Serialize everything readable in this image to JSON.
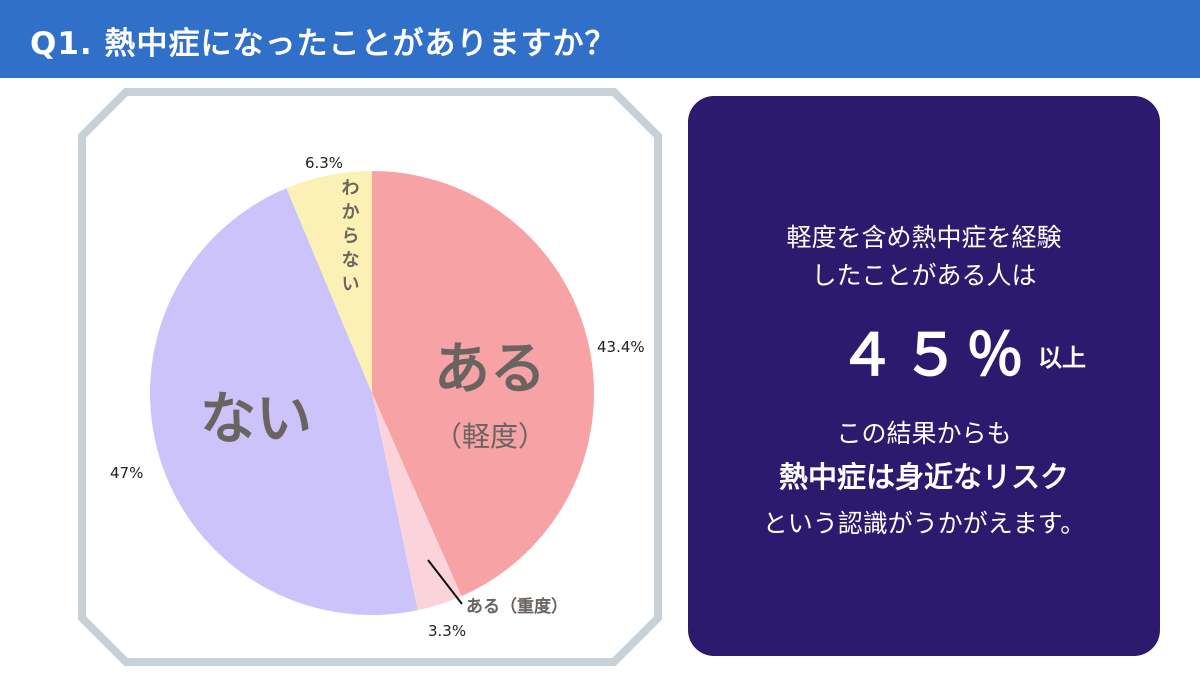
{
  "header": {
    "title": "Q1. 熱中症になったことがありますか？"
  },
  "colors": {
    "header_bg": "#3170c8",
    "panel_bg": "#2b1a6e",
    "frame": "#c8d0d8"
  },
  "chart_data": {
    "type": "pie",
    "title": "",
    "slices": [
      {
        "name": "ある（軽度）",
        "value": 43.4,
        "label": "43.4%",
        "color": "#f7a2a4"
      },
      {
        "name": "ある（重度）",
        "value": 3.3,
        "label": "3.3%",
        "color": "#fbd4db"
      },
      {
        "name": "ない",
        "value": 47.0,
        "label": "47%",
        "color": "#cdc3fb"
      },
      {
        "name": "わからない",
        "value": 6.3,
        "label": "6.3%",
        "color": "#fcf1b5"
      }
    ],
    "inner_labels": {
      "mild_main": "ある",
      "mild_sub": "（軽度）",
      "none": "ない",
      "unknown": "わからない",
      "severe_callout": "ある（重度）"
    }
  },
  "info": {
    "line1": "軽度を含め熱中症を経験",
    "line2": "したことがある人は",
    "percent": "４５％",
    "percent_suffix": "以上",
    "line3": "この結果からも",
    "line4": "熱中症は身近なリスク",
    "line5": "という認識がうかがえます。"
  }
}
